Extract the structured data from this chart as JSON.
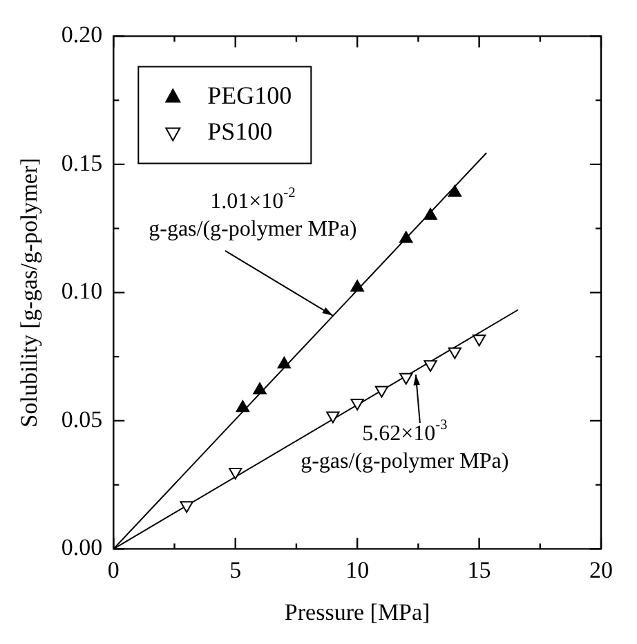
{
  "chart_data": {
    "type": "scatter",
    "xlabel": "Pressure [MPa]",
    "ylabel": "Solubility [g-gas/g-polymer]",
    "xlim": [
      0,
      20
    ],
    "ylim": [
      0,
      0.2
    ],
    "xticks": [
      0,
      {
        "value": 2.5,
        "label": null
      },
      5,
      {
        "value": 7.5,
        "label": null
      },
      10,
      {
        "value": 12.5,
        "label": null
      },
      15,
      {
        "value": 17.5,
        "label": null
      },
      20
    ],
    "yticks": [
      {
        "value": 0,
        "label": "0.00"
      },
      {
        "value": 0.025,
        "label": null
      },
      {
        "value": 0.05,
        "label": "0.05"
      },
      {
        "value": 0.075,
        "label": null
      },
      {
        "value": 0.1,
        "label": "0.10"
      },
      {
        "value": 0.125,
        "label": null
      },
      {
        "value": 0.15,
        "label": "0.15"
      },
      {
        "value": 0.175,
        "label": null
      },
      {
        "value": 0.2,
        "label": "0.20"
      }
    ],
    "series": [
      {
        "name": "PEG100",
        "marker": "triangle",
        "color": "#000000",
        "x": [
          5.3,
          6,
          7,
          10,
          12,
          13,
          14
        ],
        "values": [
          0.055,
          0.062,
          0.072,
          0.102,
          0.121,
          0.13,
          0.139
        ]
      },
      {
        "name": "PS100",
        "marker": "triangle",
        "color": "#000000",
        "x": [
          3,
          5,
          9,
          10,
          11,
          12,
          13,
          14,
          15
        ],
        "values": [
          0.017,
          0.03,
          0.052,
          0.057,
          0.062,
          0.067,
          0.072,
          0.077,
          0.082
        ]
      },
      {
        "type": "line",
        "marker": "none",
        "color": "#000000",
        "x": [
          0,
          15.3
        ],
        "values": [
          0,
          0.1545
        ]
      },
      {
        "type": "line",
        "marker": "none",
        "color": "#000000",
        "x": [
          0,
          16.6
        ],
        "values": [
          0,
          0.0933
        ]
      }
    ],
    "annotations": [
      {
        "text": "1.01×10$^{-2}$\ng-gas/(g-polymer MPa)",
        "x": 9,
        "y": 0.091
      },
      {
        "text": "5.62×10$^{-3}$\ng-gas/(g-polymer MPa)",
        "x": 12.4,
        "y": 0.068
      }
    ],
    "grid": false,
    "legend": "top left"
  }
}
